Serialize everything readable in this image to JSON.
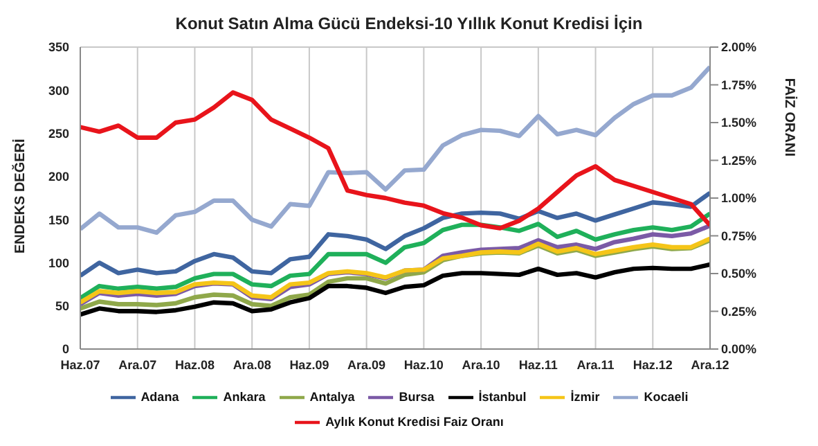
{
  "chart_data": {
    "type": "line",
    "title": "Konut Satın Alma Gücü Endeksi-10 Yıllık Konut Kredisi İçin",
    "ylabel": "ENDEKS DEĞERİ",
    "y2label": "FAİZ ORANI",
    "x": [
      "2007-06",
      "2007-08",
      "2007-10",
      "2007-12",
      "2008-02",
      "2008-04",
      "2008-06",
      "2008-08",
      "2008-10",
      "2008-12",
      "2009-02",
      "2009-04",
      "2009-06",
      "2009-08",
      "2009-10",
      "2009-12",
      "2010-02",
      "2010-04",
      "2010-06",
      "2010-08",
      "2010-10",
      "2010-12",
      "2011-02",
      "2011-04",
      "2011-06",
      "2011-08",
      "2011-10",
      "2011-12",
      "2012-02",
      "2012-04",
      "2012-06",
      "2012-08",
      "2012-10",
      "2012-12"
    ],
    "xlim": [
      "2007-06",
      "2012-12"
    ],
    "xticks": [
      {
        "value": "2007-06",
        "label": "Haz.07"
      },
      {
        "value": "2007-12",
        "label": "Ara.07"
      },
      {
        "value": "2008-06",
        "label": "Haz.08"
      },
      {
        "value": "2008-12",
        "label": "Ara.08"
      },
      {
        "value": "2009-06",
        "label": "Haz.09"
      },
      {
        "value": "2009-12",
        "label": "Ara.09"
      },
      {
        "value": "2010-06",
        "label": "Haz.10"
      },
      {
        "value": "2010-12",
        "label": "Ara.10"
      },
      {
        "value": "2011-06",
        "label": "Haz.11"
      },
      {
        "value": "2011-12",
        "label": "Ara.11"
      },
      {
        "value": "2012-06",
        "label": "Haz.12"
      },
      {
        "value": "2012-12",
        "label": "Ara.12"
      }
    ],
    "ylim": [
      0,
      350
    ],
    "yticks": [
      0,
      50,
      100,
      150,
      200,
      250,
      300,
      350
    ],
    "y2lim": [
      0,
      2
    ],
    "y2ticks": [
      {
        "value": 0,
        "label": "0.00%"
      },
      {
        "value": 0.25,
        "label": "0.25%"
      },
      {
        "value": 0.5,
        "label": "0.50%"
      },
      {
        "value": 0.75,
        "label": "0.75%"
      },
      {
        "value": 1,
        "label": "1.00%"
      },
      {
        "value": 1.25,
        "label": "1.25%"
      },
      {
        "value": 1.5,
        "label": "1.50%"
      },
      {
        "value": 1.75,
        "label": "1.75%"
      },
      {
        "value": 2,
        "label": "2.00%"
      }
    ],
    "grid": true,
    "legend": "bottom",
    "marker": "none",
    "line_style": "solid",
    "series": [
      {
        "name": "Adana",
        "color": "#3f65a0",
        "values": [
          85,
          100,
          88,
          92,
          88,
          90,
          102,
          110,
          106,
          90,
          88,
          104,
          107,
          133,
          131,
          127,
          116,
          131,
          140,
          152,
          157,
          158,
          157,
          151,
          160,
          152,
          157,
          149,
          156,
          163,
          170,
          168,
          165,
          181
        ]
      },
      {
        "name": "Ankara",
        "color": "#1fb05a",
        "values": [
          59,
          73,
          70,
          72,
          70,
          72,
          82,
          87,
          87,
          75,
          73,
          85,
          87,
          110,
          110,
          110,
          100,
          118,
          123,
          138,
          144,
          144,
          141,
          137,
          145,
          130,
          137,
          127,
          133,
          138,
          141,
          138,
          142,
          157
        ]
      },
      {
        "name": "Antalya",
        "color": "#8fa84a",
        "values": [
          47,
          55,
          52,
          52,
          51,
          53,
          60,
          63,
          62,
          52,
          50,
          60,
          63,
          78,
          82,
          82,
          76,
          86,
          89,
          103,
          108,
          111,
          112,
          111,
          120,
          111,
          115,
          108,
          112,
          116,
          119,
          116,
          117,
          126
        ]
      },
      {
        "name": "Bursa",
        "color": "#7b5aa6",
        "values": [
          52,
          65,
          62,
          64,
          62,
          64,
          73,
          76,
          75,
          60,
          58,
          72,
          75,
          87,
          89,
          87,
          82,
          91,
          92,
          108,
          112,
          115,
          116,
          117,
          126,
          118,
          121,
          116,
          124,
          128,
          133,
          131,
          134,
          143
        ]
      },
      {
        "name": "İstanbul",
        "color": "#000000",
        "values": [
          40,
          47,
          44,
          44,
          43,
          45,
          49,
          54,
          53,
          44,
          46,
          54,
          59,
          73,
          73,
          71,
          65,
          72,
          74,
          85,
          88,
          88,
          87,
          86,
          93,
          86,
          88,
          83,
          89,
          93,
          94,
          93,
          93,
          98
        ]
      },
      {
        "name": "İzmir",
        "color": "#f5c518",
        "values": [
          54,
          67,
          65,
          67,
          65,
          66,
          75,
          77,
          76,
          62,
          60,
          75,
          77,
          88,
          90,
          88,
          83,
          91,
          92,
          105,
          108,
          112,
          113,
          112,
          122,
          113,
          117,
          110,
          114,
          118,
          121,
          118,
          118,
          128
        ]
      },
      {
        "name": "Kocaeli",
        "color": "#95a8cf",
        "values": [
          139,
          157,
          141,
          141,
          135,
          155,
          159,
          172,
          172,
          150,
          142,
          168,
          166,
          205,
          204,
          205,
          185,
          207,
          208,
          236,
          248,
          254,
          253,
          247,
          270,
          249,
          254,
          248,
          268,
          284,
          294,
          294,
          303,
          327
        ]
      },
      {
        "name": "Aylık Konut Kredisi Faiz Oranı",
        "color": "#e8141b",
        "axis": "y2",
        "values": [
          1.47,
          1.44,
          1.48,
          1.4,
          1.4,
          1.5,
          1.52,
          1.6,
          1.7,
          1.65,
          1.52,
          1.46,
          1.4,
          1.33,
          1.05,
          1.02,
          1,
          0.97,
          0.95,
          0.9,
          0.87,
          0.82,
          0.8,
          0.85,
          0.93,
          1.04,
          1.15,
          1.21,
          1.12,
          1.08,
          1.04,
          1,
          0.96,
          0.82
        ]
      }
    ]
  }
}
